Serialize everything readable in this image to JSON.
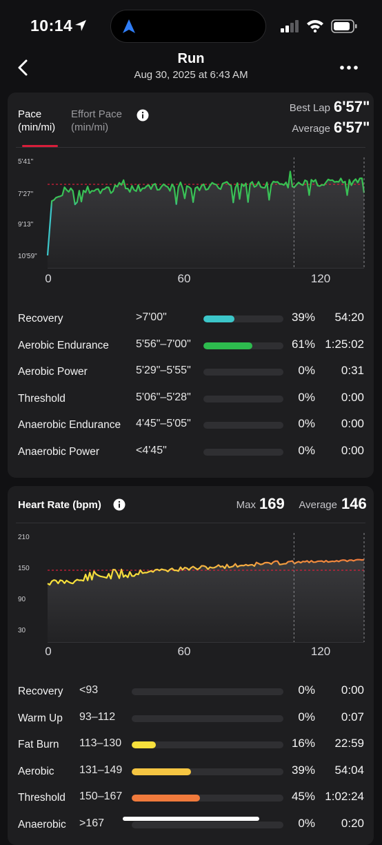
{
  "status_bar": {
    "time": "10:14"
  },
  "nav": {
    "title": "Run",
    "subtitle": "Aug 30, 2025 at 6:43 AM"
  },
  "pace_card": {
    "tabs": [
      {
        "label": "Pace\n(min/mi)"
      },
      {
        "label": "Effort Pace\n(min/mi)"
      }
    ],
    "best_lap_label": "Best Lap",
    "best_lap_value": "6'57\"",
    "average_label": "Average",
    "average_value": "6'57\"",
    "y_ticks": [
      "5'41\"",
      "7'27\"",
      "9'13\"",
      "10'59\""
    ],
    "x_ticks": [
      "0",
      "60",
      "120"
    ],
    "zones": [
      {
        "name": "Recovery",
        "range": ">7'00\"",
        "pct": "39%",
        "fraction": 0.39,
        "time": "54:20",
        "color": "#3cc6c9"
      },
      {
        "name": "Aerobic Endurance",
        "range": "5'56\"–7'00\"",
        "pct": "61%",
        "fraction": 0.61,
        "time": "1:25:02",
        "color": "#2dbb4e"
      },
      {
        "name": "Aerobic Power",
        "range": "5'29\"–5'55\"",
        "pct": "0%",
        "fraction": 0.0,
        "time": "0:31",
        "color": "#a8c83a"
      },
      {
        "name": "Threshold",
        "range": "5'06\"–5'28\"",
        "pct": "0%",
        "fraction": 0,
        "time": "0:00",
        "color": "#f2c94c"
      },
      {
        "name": "Anaerobic Endurance",
        "range": "4'45\"–5'05\"",
        "pct": "0%",
        "fraction": 0,
        "time": "0:00",
        "color": "#f2884b"
      },
      {
        "name": "Anaerobic Power",
        "range": "<4'45\"",
        "pct": "0%",
        "fraction": 0,
        "time": "0:00",
        "color": "#e0453a"
      }
    ]
  },
  "hr_card": {
    "title": "Heart Rate (bpm)",
    "max_label": "Max",
    "max_value": "169",
    "average_label": "Average",
    "average_value": "146",
    "y_ticks": [
      "210",
      "150",
      "90",
      "30"
    ],
    "x_ticks": [
      "0",
      "60",
      "120"
    ],
    "zones": [
      {
        "name": "Recovery",
        "range": "<93",
        "pct": "0%",
        "fraction": 0,
        "time": "0:00",
        "color": "#9e9e9e"
      },
      {
        "name": "Warm Up",
        "range": "93–112",
        "pct": "0%",
        "fraction": 0,
        "time": "0:07",
        "color": "#bdbdbd"
      },
      {
        "name": "Fat Burn",
        "range": "113–130",
        "pct": "16%",
        "fraction": 0.16,
        "time": "22:59",
        "color": "#f7e03c"
      },
      {
        "name": "Aerobic",
        "range": "131–149",
        "pct": "39%",
        "fraction": 0.39,
        "time": "54:04",
        "color": "#f5c542"
      },
      {
        "name": "Threshold",
        "range": "150–167",
        "pct": "45%",
        "fraction": 0.45,
        "time": "1:02:24",
        "color": "#f07a3c"
      },
      {
        "name": "Anaerobic",
        "range": ">167",
        "pct": "0%",
        "fraction": 0,
        "time": "0:20",
        "color": "#e0453a"
      }
    ]
  },
  "colors": {
    "accent": "#d81e3a",
    "card": "#1e1e20",
    "background": "#111113"
  },
  "chart_data": [
    {
      "type": "line",
      "xlim": [
        0,
        140
      ],
      "y_ticks": [
        "5'41\"",
        "7'27\"",
        "9'13\"",
        "10'59\""
      ],
      "x_ticks": [
        "0",
        "60",
        "120"
      ],
      "reference_line": "6'57\"",
      "vertical_marker_x": 109
    },
    {
      "type": "line",
      "xlim": [
        0,
        140
      ],
      "ylim": [
        30,
        210
      ],
      "y_ticks": [
        "210",
        "150",
        "90",
        "30"
      ],
      "x_ticks": [
        "0",
        "60",
        "120"
      ],
      "reference_line": 146,
      "vertical_marker_x": 109
    }
  ]
}
